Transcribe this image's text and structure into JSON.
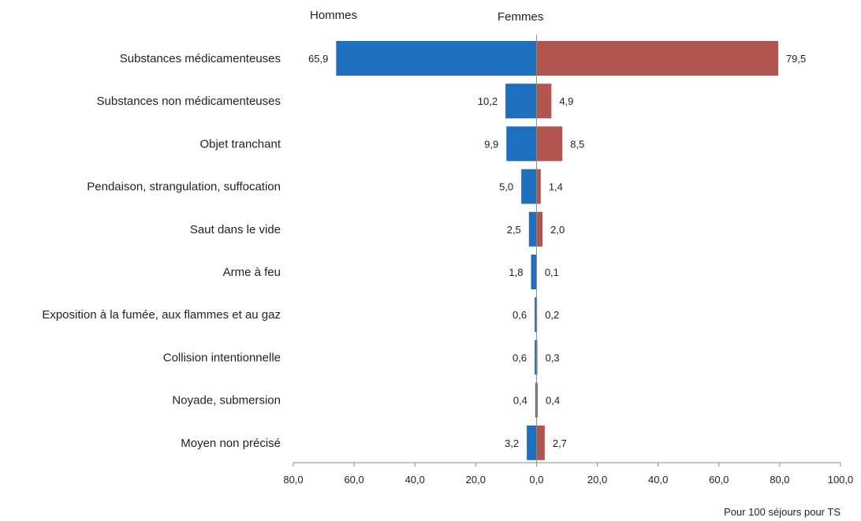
{
  "chart_data": {
    "type": "bar",
    "orientation": "horizontal-diverging",
    "categories": [
      "Substances médicamenteuses",
      "Substances non médicamenteuses",
      "Objet tranchant",
      "Pendaison, strangulation, suffocation",
      "Saut dans le vide",
      "Arme à feu",
      "Exposition à la fumée, aux flammes et au gaz",
      "Collision intentionnelle",
      "Noyade, submersion",
      "Moyen non précisé"
    ],
    "series": [
      {
        "name": "Hommes",
        "side": "left",
        "color": "#1f6fbf",
        "values": [
          65.9,
          10.2,
          9.9,
          5.0,
          2.5,
          1.8,
          0.6,
          0.6,
          0.4,
          3.2
        ],
        "labels": [
          "65,9",
          "10,2",
          "9,9",
          "5,0",
          "2,5",
          "1,8",
          "0,6",
          "0,6",
          "0,4",
          "3,2"
        ]
      },
      {
        "name": "Femmes",
        "side": "right",
        "color": "#b05550",
        "values": [
          79.5,
          4.9,
          8.5,
          1.4,
          2.0,
          0.1,
          0.2,
          0.3,
          0.4,
          2.7
        ],
        "labels": [
          "79,5",
          "4,9",
          "8,5",
          "1,4",
          "2,0",
          "0,1",
          "0,2",
          "0,3",
          "0,4",
          "2,7"
        ]
      }
    ],
    "xlim": [
      -80,
      100
    ],
    "x_ticks": [
      {
        "value": -80,
        "label": "80,0"
      },
      {
        "value": -60,
        "label": "60,0"
      },
      {
        "value": -40,
        "label": "40,0"
      },
      {
        "value": -20,
        "label": "20,0"
      },
      {
        "value": 0,
        "label": "0,0"
      },
      {
        "value": 20,
        "label": "20,0"
      },
      {
        "value": 40,
        "label": "40,0"
      },
      {
        "value": 60,
        "label": "60,0"
      },
      {
        "value": 80,
        "label": "80,0"
      },
      {
        "value": 100,
        "label": "100,0"
      }
    ],
    "xlabel": "Pour 100 séjours pour TS",
    "title": "",
    "ylabel": "",
    "grid": false,
    "legend": "top"
  }
}
